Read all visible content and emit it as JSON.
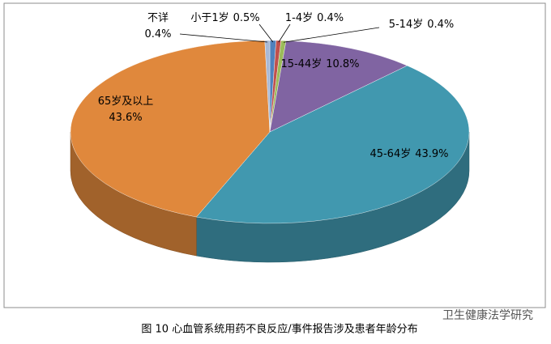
{
  "chart_data": {
    "type": "pie3d",
    "categories": [
      "小于1岁",
      "1-4岁",
      "5-14岁",
      "15-44岁",
      "45-64岁",
      "65岁及以上",
      "不详"
    ],
    "values": [
      0.5,
      0.4,
      0.4,
      10.8,
      43.9,
      43.6,
      0.4
    ],
    "value_labels": [
      "0.5%",
      "0.4%",
      "0.4%",
      "10.8%",
      "43.9%",
      "43.6%",
      "0.4%"
    ],
    "colors": [
      "#4f81bd",
      "#c0504d",
      "#9bbb59",
      "#8064a2",
      "#4198af",
      "#e0883c",
      "#a9b9d6"
    ]
  },
  "caption": "图 10 心血管系统用药不良反应/事件报告涉及患者年龄分布",
  "watermark": "卫生健康法学研究"
}
